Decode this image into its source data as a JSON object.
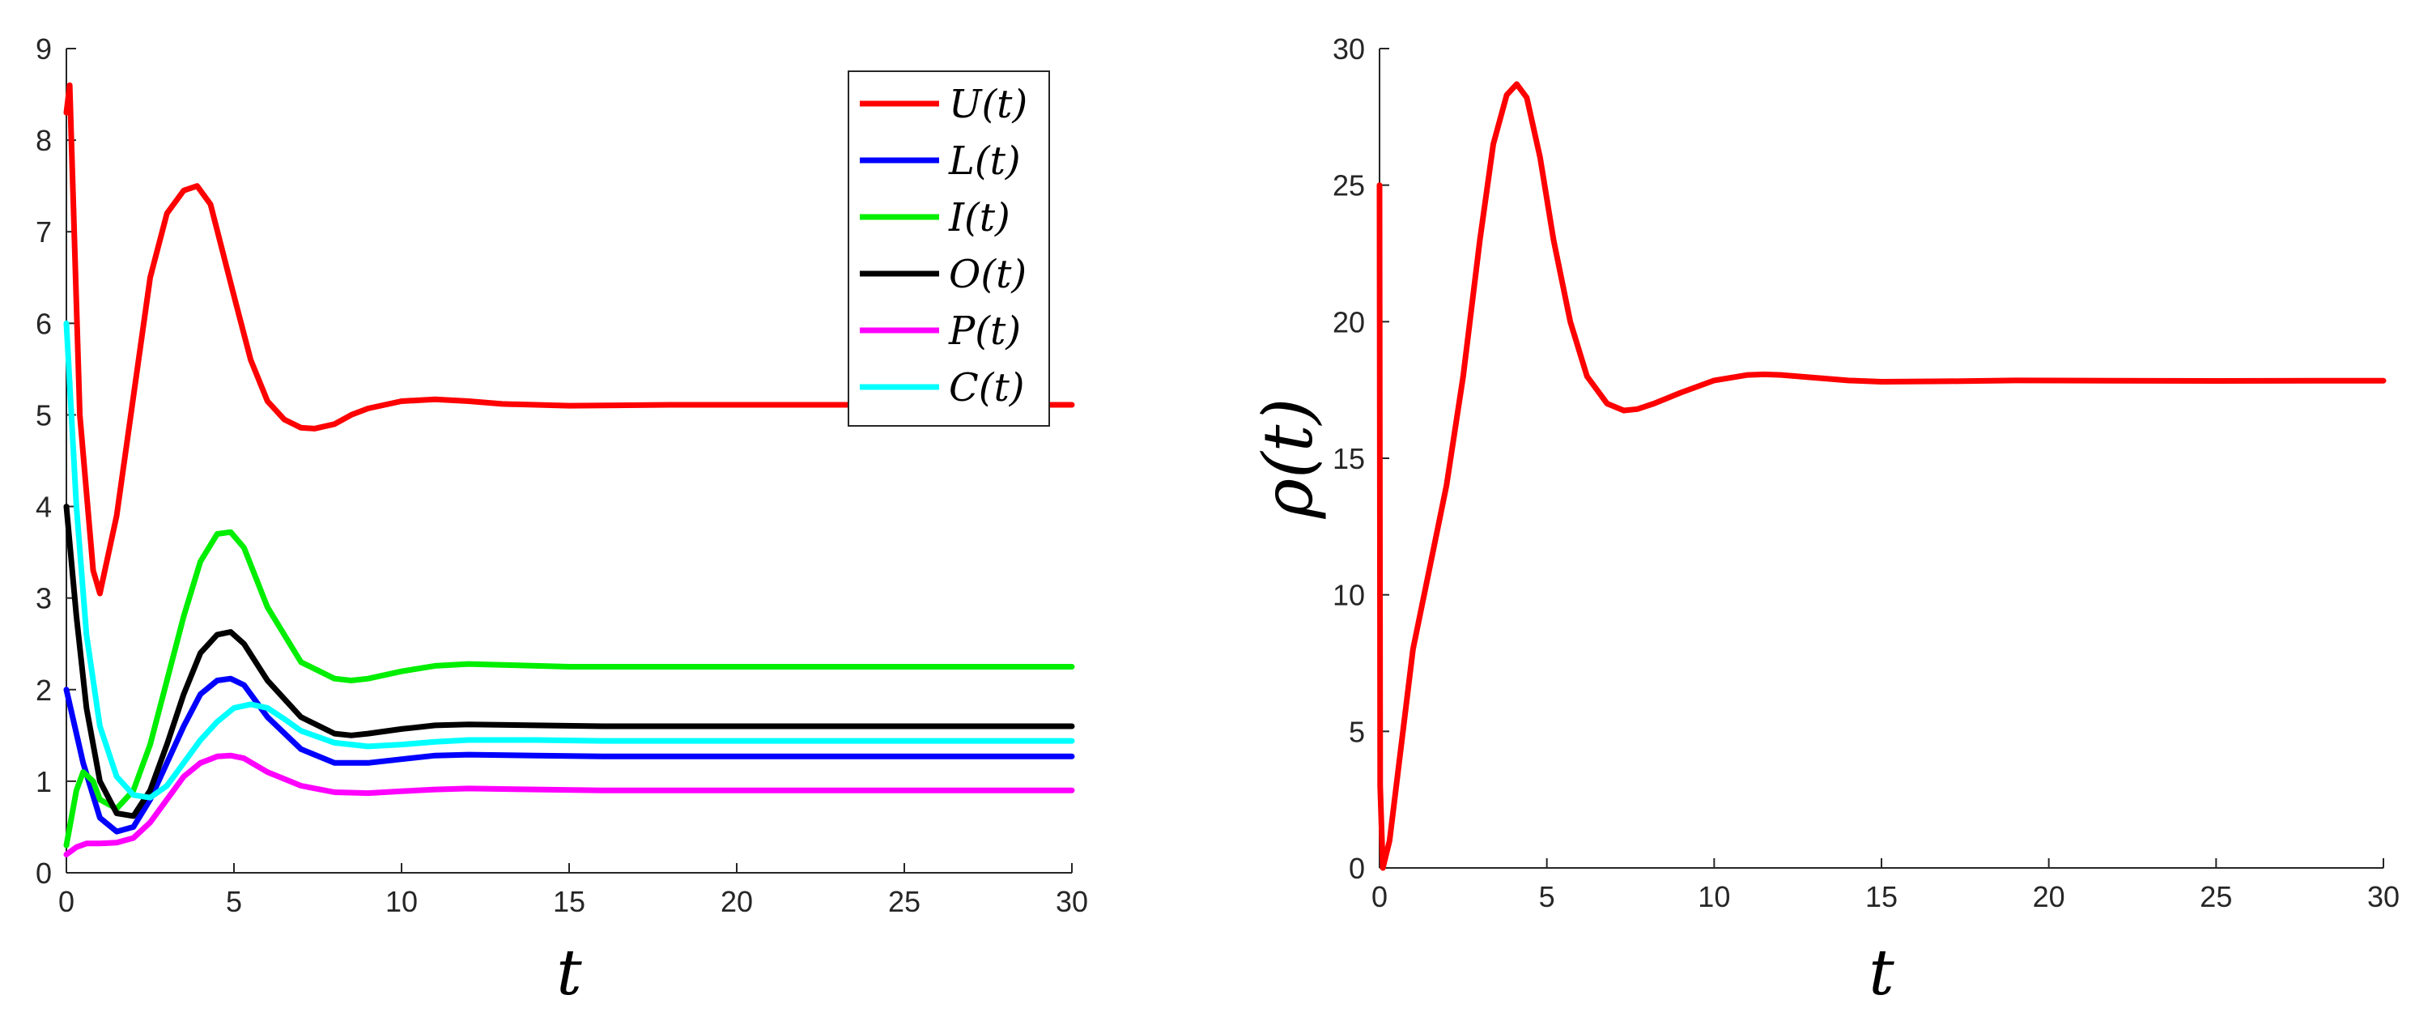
{
  "chart_data": [
    {
      "type": "line",
      "xlabel": "t",
      "ylabel": "",
      "xlim": [
        0,
        30
      ],
      "ylim": [
        0,
        9
      ],
      "xticks": [
        "0",
        "5",
        "10",
        "15",
        "20",
        "25",
        "30"
      ],
      "yticks": [
        "0",
        "1",
        "2",
        "3",
        "4",
        "5",
        "6",
        "7",
        "8",
        "9"
      ],
      "grid": false,
      "legend_position": "top-right",
      "series": [
        {
          "name": "U(t)",
          "color": "#ff0000",
          "x": [
            0,
            0.1,
            0.4,
            0.8,
            1.0,
            1.5,
            2.0,
            2.5,
            3.0,
            3.5,
            3.9,
            4.3,
            5.0,
            5.5,
            6.0,
            6.5,
            7.0,
            7.4,
            8.0,
            8.5,
            9.0,
            10.0,
            11.0,
            12.0,
            13.0,
            15.0,
            18.0,
            22.0,
            26.0,
            30.0
          ],
          "y": [
            8.3,
            8.6,
            5.0,
            3.3,
            3.05,
            3.9,
            5.2,
            6.5,
            7.2,
            7.45,
            7.5,
            7.3,
            6.3,
            5.6,
            5.15,
            4.95,
            4.86,
            4.85,
            4.9,
            5.0,
            5.07,
            5.15,
            5.17,
            5.15,
            5.12,
            5.1,
            5.11,
            5.11,
            5.11,
            5.11
          ]
        },
        {
          "name": "L(t)",
          "color": "#0000ff",
          "x": [
            0,
            0.5,
            1.0,
            1.5,
            2.0,
            2.5,
            3.0,
            3.5,
            4.0,
            4.5,
            4.9,
            5.3,
            6.0,
            7.0,
            8.0,
            9.0,
            10.0,
            11.0,
            12.0,
            14.0,
            16.0,
            20.0,
            25.0,
            30.0
          ],
          "y": [
            2.0,
            1.2,
            0.6,
            0.45,
            0.5,
            0.8,
            1.2,
            1.6,
            1.95,
            2.1,
            2.12,
            2.05,
            1.7,
            1.35,
            1.2,
            1.2,
            1.24,
            1.28,
            1.29,
            1.28,
            1.27,
            1.27,
            1.27,
            1.27
          ]
        },
        {
          "name": "I(t)",
          "color": "#00ee00",
          "x": [
            0,
            0.3,
            0.5,
            0.8,
            1.0,
            1.5,
            2.0,
            2.5,
            3.0,
            3.5,
            4.0,
            4.5,
            4.9,
            5.3,
            6.0,
            7.0,
            8.0,
            8.5,
            9.0,
            10.0,
            11.0,
            12.0,
            13.0,
            15.0,
            18.0,
            22.0,
            26.0,
            30.0
          ],
          "y": [
            0.3,
            0.9,
            1.1,
            1.0,
            0.8,
            0.7,
            0.9,
            1.4,
            2.1,
            2.8,
            3.4,
            3.7,
            3.72,
            3.55,
            2.9,
            2.3,
            2.12,
            2.1,
            2.12,
            2.2,
            2.26,
            2.28,
            2.27,
            2.25,
            2.25,
            2.25,
            2.25,
            2.25
          ]
        },
        {
          "name": "O(t)",
          "color": "#000000",
          "x": [
            0,
            0.3,
            0.6,
            1.0,
            1.5,
            2.0,
            2.5,
            3.0,
            3.5,
            4.0,
            4.5,
            4.9,
            5.3,
            6.0,
            7.0,
            8.0,
            8.5,
            9.0,
            10.0,
            11.0,
            12.0,
            14.0,
            16.0,
            20.0,
            25.0,
            30.0
          ],
          "y": [
            4.0,
            2.8,
            1.8,
            1.0,
            0.65,
            0.62,
            0.9,
            1.4,
            1.95,
            2.4,
            2.6,
            2.63,
            2.5,
            2.1,
            1.7,
            1.52,
            1.5,
            1.52,
            1.57,
            1.61,
            1.62,
            1.61,
            1.6,
            1.6,
            1.6,
            1.6
          ]
        },
        {
          "name": "P(t)",
          "color": "#ff00ff",
          "x": [
            0,
            0.3,
            0.6,
            1.0,
            1.5,
            2.0,
            2.5,
            3.0,
            3.5,
            4.0,
            4.5,
            4.9,
            5.3,
            6.0,
            7.0,
            8.0,
            9.0,
            10.0,
            11.0,
            12.0,
            14.0,
            16.0,
            20.0,
            25.0,
            30.0
          ],
          "y": [
            0.2,
            0.28,
            0.32,
            0.32,
            0.33,
            0.38,
            0.55,
            0.8,
            1.05,
            1.2,
            1.27,
            1.28,
            1.25,
            1.1,
            0.95,
            0.88,
            0.87,
            0.89,
            0.91,
            0.92,
            0.91,
            0.9,
            0.9,
            0.9,
            0.9
          ]
        },
        {
          "name": "C(t)",
          "color": "#00ffff",
          "x": [
            0,
            0.3,
            0.6,
            1.0,
            1.5,
            2.0,
            2.5,
            3.0,
            3.5,
            4.0,
            4.5,
            5.0,
            5.5,
            6.0,
            6.5,
            7.0,
            8.0,
            9.0,
            10.0,
            11.0,
            12.0,
            14.0,
            16.0,
            20.0,
            25.0,
            30.0
          ],
          "y": [
            6.0,
            4.0,
            2.6,
            1.6,
            1.05,
            0.85,
            0.82,
            0.95,
            1.2,
            1.45,
            1.65,
            1.8,
            1.84,
            1.8,
            1.68,
            1.55,
            1.42,
            1.38,
            1.4,
            1.43,
            1.45,
            1.45,
            1.44,
            1.44,
            1.44,
            1.44
          ]
        }
      ]
    },
    {
      "type": "line",
      "xlabel": "t",
      "ylabel": "ρ(t)",
      "xlim": [
        0,
        30
      ],
      "ylim": [
        0,
        30
      ],
      "xticks": [
        "0",
        "5",
        "10",
        "15",
        "20",
        "25",
        "30"
      ],
      "yticks": [
        "0",
        "5",
        "10",
        "15",
        "20",
        "25",
        "30"
      ],
      "grid": false,
      "series": [
        {
          "name": "",
          "color": "#ff0000",
          "x": [
            0,
            0.02,
            0.1,
            0.3,
            0.6,
            1.0,
            1.5,
            2.0,
            2.5,
            3.0,
            3.4,
            3.8,
            4.1,
            4.4,
            4.8,
            5.2,
            5.7,
            6.2,
            6.8,
            7.3,
            7.7,
            8.2,
            9.0,
            10.0,
            11.0,
            11.5,
            12.0,
            13.0,
            14.0,
            15.0,
            17.0,
            19.0,
            22.0,
            25.0,
            28.0,
            30.0
          ],
          "y": [
            25.0,
            3.0,
            0.0,
            1.0,
            4.0,
            8.0,
            11.0,
            14.0,
            18.0,
            23.0,
            26.5,
            28.3,
            28.7,
            28.2,
            26.0,
            23.0,
            20.0,
            18.0,
            17.0,
            16.75,
            16.8,
            17.0,
            17.4,
            17.85,
            18.05,
            18.07,
            18.05,
            17.95,
            17.85,
            17.8,
            17.82,
            17.85,
            17.84,
            17.83,
            17.84,
            17.84
          ]
        }
      ]
    }
  ]
}
